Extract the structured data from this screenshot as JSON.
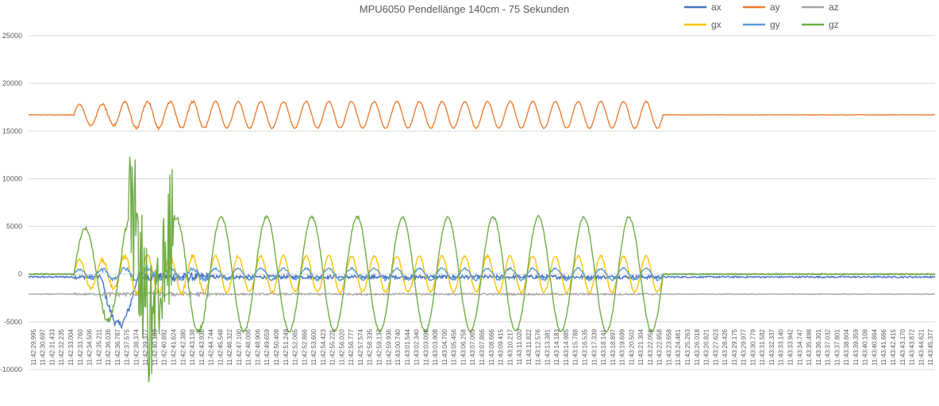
{
  "chart_data": {
    "type": "line",
    "title": "MPU6050 Pendellänge 140cm - 75 Sekunden",
    "ylim": [
      -12000,
      26000
    ],
    "yticks": [
      -10000,
      -5000,
      0,
      5000,
      10000,
      15000,
      20000,
      25000
    ],
    "grid": true,
    "legend_position": "top-right",
    "xtick_labels": [
      "11:42:29.995",
      "11:42:30.697",
      "11:42:31.433",
      "11:42:32.235",
      "11:42:33.004",
      "11:42:33.760",
      "11:42:34.506",
      "11:42:35.211",
      "11:42:36.036",
      "11:42:36.787",
      "11:42:37.575",
      "11:42:38.374",
      "11:42:39.377",
      "11:42:40.189",
      "11:42:40.892",
      "11:42:41.624",
      "11:42:42.380",
      "11:42:43.138",
      "11:42:43.936",
      "11:42:44.744",
      "11:42:45.548",
      "11:42:46.322",
      "11:42:47.100",
      "11:42:48.006",
      "11:42:48.906",
      "11:42:49.659",
      "11:42:50.408",
      "11:42:51.249",
      "11:42:52.065",
      "11:42:52.866",
      "11:42:53.600",
      "11:42:54.423",
      "11:42:55.225",
      "11:42:56.020",
      "11:42:56.777",
      "11:42:57.574",
      "11:42:58.335",
      "11:42:59.137",
      "11:42:59.936",
      "11:43:00.740",
      "11:43:01.544",
      "11:43:02.340",
      "11:43:03.098",
      "11:43:03.908",
      "11:43:04.700",
      "11:43:05.456",
      "11:43:06.258",
      "11:43:07.063",
      "11:43:07.866",
      "11:43:08.666",
      "11:43:09.415",
      "11:43:10.217",
      "11:43:11.020",
      "11:43:11.822",
      "11:43:12.576",
      "11:43:13.381",
      "11:43:14.183",
      "11:43:14.985",
      "11:43:15.788",
      "11:43:16.535",
      "11:43:17.339",
      "11:43:18.141",
      "11:43:18.897",
      "11:43:19.699",
      "11:43:20.502",
      "11:43:21.304",
      "11:43:22.056",
      "11:43:22.858",
      "11:43:23.658",
      "11:43:24.461",
      "11:43:25.263",
      "11:43:26.018",
      "11:43:26.821",
      "11:43:27.623",
      "11:43:28.426",
      "11:43:29.175",
      "11:43:29.977",
      "11:43:30.779",
      "11:43:31.582",
      "11:43:32.337",
      "11:43:33.140",
      "11:43:33.942",
      "11:43:34.747",
      "11:43:35.498",
      "11:43:36.301",
      "11:43:37.032",
      "11:43:37.801",
      "11:43:38.604",
      "11:43:39.359",
      "11:43:40.108",
      "11:43:40.864",
      "11:43:41.666",
      "11:43:42.415",
      "11:43:43.170",
      "11:43:43.872",
      "11:43:44.621",
      "11:43:45.377"
    ],
    "segments": [
      {
        "from": 0,
        "to": 5,
        "amp": 0
      },
      {
        "from": 5,
        "to": 10,
        "amp": 0.8
      },
      {
        "from": 10,
        "to": 16,
        "amp": 1
      },
      {
        "from": 16,
        "to": 70,
        "amp": 1
      },
      {
        "from": 70,
        "to": 100,
        "amp": 0
      }
    ],
    "series": [
      {
        "name": "ax",
        "color": "#4472C4",
        "base": -300,
        "amplitude": 500,
        "cycles": 0,
        "noise": 400
      },
      {
        "name": "ay",
        "color": "#ED7D31",
        "base": 16700,
        "amplitude": 1400,
        "cycles": 40,
        "noise": 120
      },
      {
        "name": "az",
        "color": "#A5A5A5",
        "base": -2100,
        "amplitude": 250,
        "cycles": 0,
        "noise": 180
      },
      {
        "name": "gx",
        "color": "#FFC000",
        "base": 0,
        "amplitude": 1900,
        "cycles": 40,
        "noise": 250
      },
      {
        "name": "gy",
        "color": "#5B9BD5",
        "base": 0,
        "amplitude": 600,
        "cycles": 40,
        "noise": 200
      },
      {
        "name": "gz",
        "color": "#70AD47",
        "base": 0,
        "amplitude": 6000,
        "cycles": 20,
        "noise": 300
      }
    ]
  }
}
